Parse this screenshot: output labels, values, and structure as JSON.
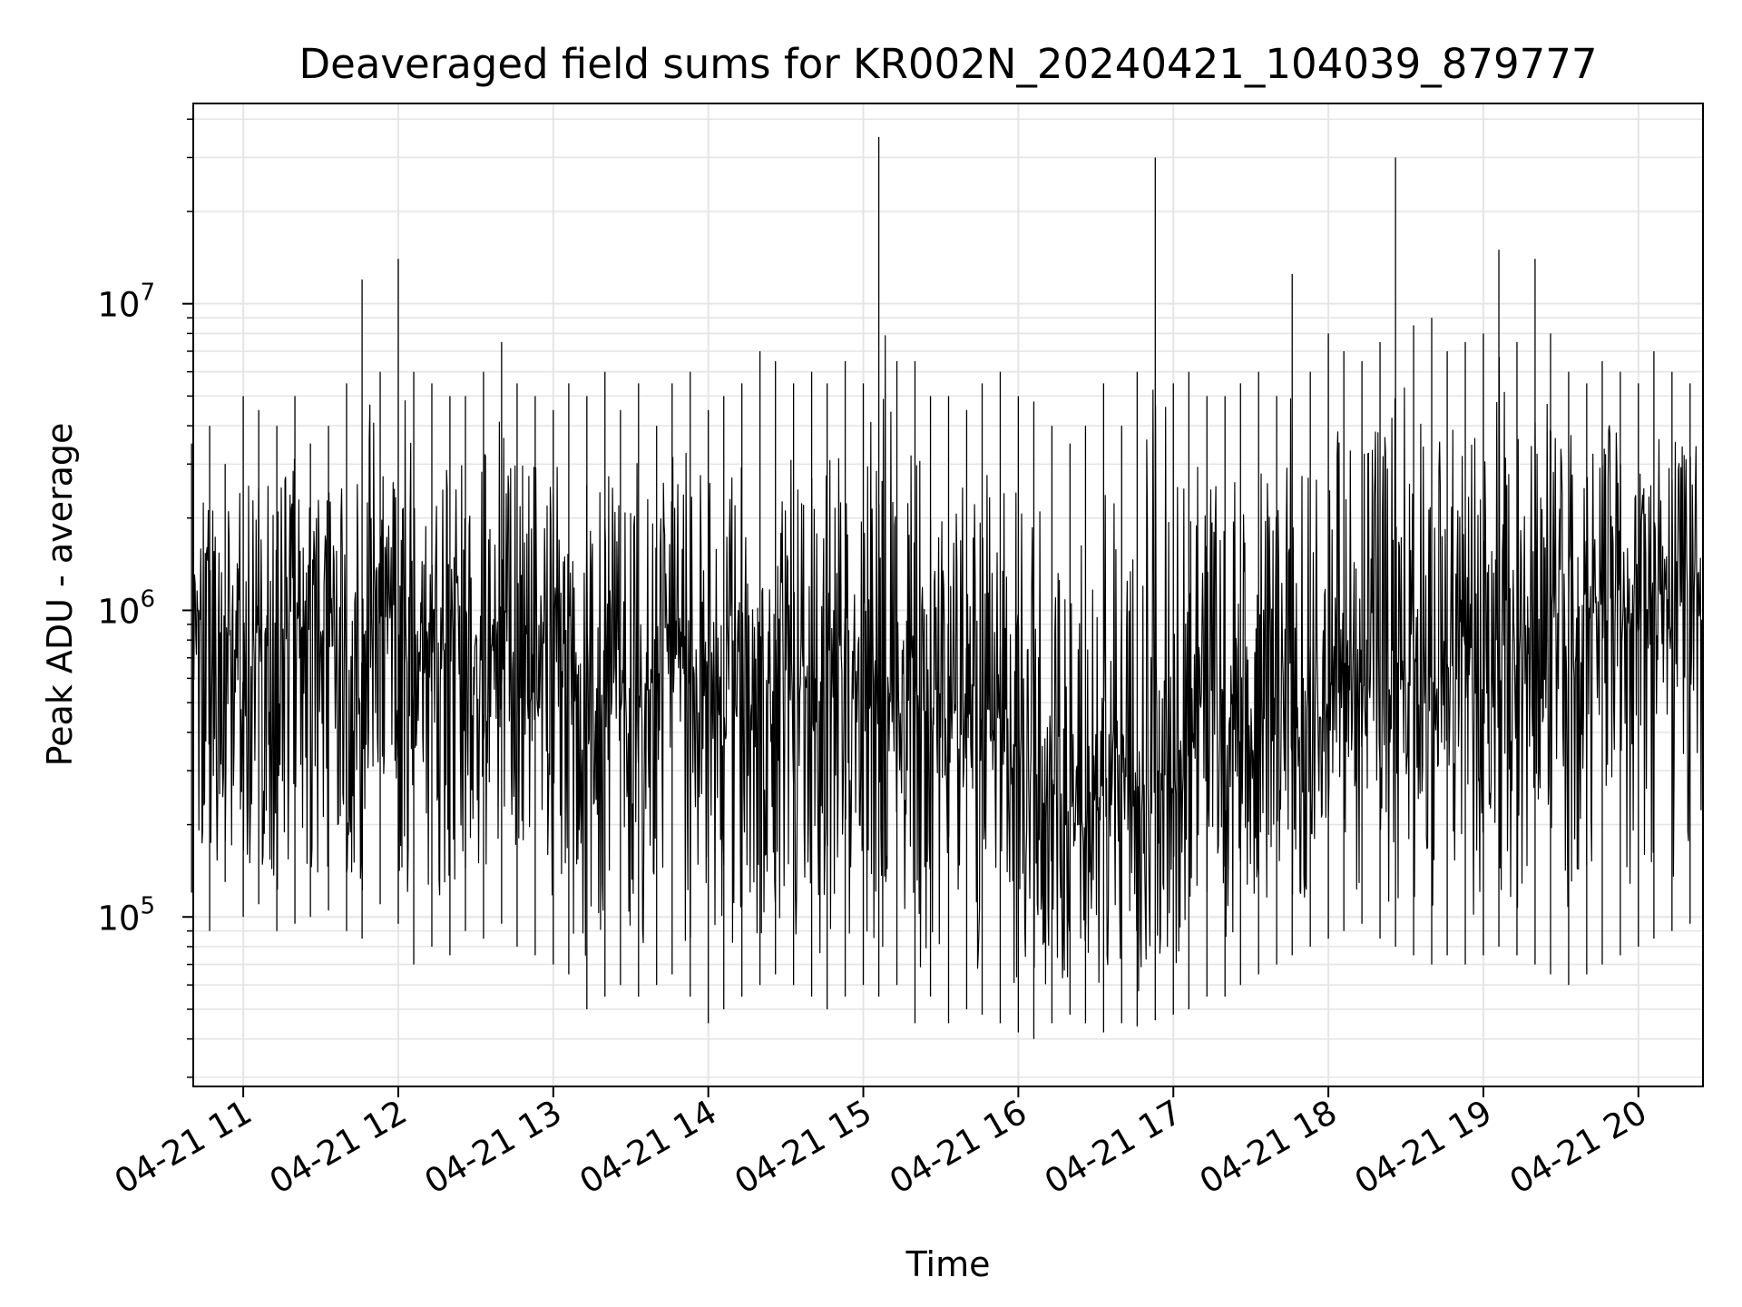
{
  "chart_data": {
    "type": "line",
    "title": "Deaveraged field sums for KR002N_20240421_104039_879777",
    "xlabel": "Time",
    "ylabel": "Peak ADU - average",
    "yscale": "log",
    "xlim": [
      "2024-04-21T10:40:39",
      "2024-04-21T20:25:00"
    ],
    "ylim": [
      28000,
      45000000
    ],
    "grid": true,
    "legend": "none",
    "line_color": "#000000",
    "x_tick_labels": [
      "04-21 11",
      "04-21 12",
      "04-21 13",
      "04-21 14",
      "04-21 15",
      "04-21 16",
      "04-21 17",
      "04-21 18",
      "04-21 19",
      "04-21 20"
    ],
    "x_tick_times": [
      "2024-04-21T11:00",
      "2024-04-21T12:00",
      "2024-04-21T13:00",
      "2024-04-21T14:00",
      "2024-04-21T15:00",
      "2024-04-21T16:00",
      "2024-04-21T17:00",
      "2024-04-21T18:00",
      "2024-04-21T19:00",
      "2024-04-21T20:00"
    ],
    "y_tick_labels": [
      {
        "base": "10",
        "exp": "5",
        "value": 100000
      },
      {
        "base": "10",
        "exp": "6",
        "value": 1000000
      },
      {
        "base": "10",
        "exp": "7",
        "value": 10000000
      }
    ],
    "series": [
      {
        "x": [
          "10:40",
          "10:47",
          "10:53",
          "11:00",
          "11:06",
          "11:13",
          "11:20",
          "11:26",
          "11:33",
          "11:40",
          "11:46",
          "11:53",
          "12:00",
          "12:06",
          "12:13",
          "12:20",
          "12:26",
          "12:33",
          "12:40",
          "12:46",
          "12:53",
          "13:00",
          "13:06",
          "13:13",
          "13:20",
          "13:26",
          "13:33",
          "13:40",
          "13:46",
          "13:53",
          "14:00",
          "14:06",
          "14:13",
          "14:20",
          "14:26",
          "14:33",
          "14:40",
          "14:46",
          "14:53",
          "15:00",
          "15:06",
          "15:13",
          "15:20",
          "15:26",
          "15:33",
          "15:40",
          "15:46",
          "15:53",
          "16:00",
          "16:06",
          "16:13",
          "16:20",
          "16:26",
          "16:33",
          "16:40",
          "16:46",
          "16:53",
          "17:00",
          "17:06",
          "17:13",
          "17:20",
          "17:26",
          "17:33",
          "17:40",
          "17:46",
          "17:53",
          "18:00",
          "18:06",
          "18:13",
          "18:20",
          "18:26",
          "18:33",
          "18:40",
          "18:46",
          "18:53",
          "19:00",
          "19:06",
          "19:13",
          "19:20",
          "19:26",
          "19:33",
          "19:40",
          "19:46",
          "19:53",
          "20:00",
          "20:06",
          "20:13",
          "20:20"
        ],
        "y": [
          1200000,
          700000,
          900000,
          500000,
          850000,
          600000,
          1000000,
          700000,
          800000,
          550000,
          650000,
          900000,
          1100000,
          850000,
          1000000,
          750000,
          1000000,
          700000,
          900000,
          600000,
          650000,
          800000,
          750000,
          600000,
          500000,
          650000,
          550000,
          600000,
          700000,
          650000,
          500000,
          550000,
          600000,
          650000,
          700000,
          600000,
          550000,
          700000,
          650000,
          500000,
          600000,
          450000,
          550000,
          400000,
          500000,
          450000,
          380000,
          420000,
          350000,
          300000,
          280000,
          250000,
          230000,
          250000,
          270000,
          250000,
          300000,
          320000,
          350000,
          600000,
          450000,
          400000,
          380000,
          420000,
          450000,
          500000,
          550000,
          600000,
          500000,
          600000,
          650000,
          550000,
          600000,
          650000,
          700000,
          600000,
          650000,
          700000,
          800000,
          900000,
          950000,
          1000000,
          1100000,
          1050000,
          900000,
          1100000,
          1200000,
          1300000
        ],
        "y_min": [
          120000,
          90000,
          130000,
          100000,
          110000,
          90000,
          95000,
          100000,
          105000,
          90000,
          85000,
          110000,
          95000,
          70000,
          80000,
          75000,
          90000,
          85000,
          95000,
          80000,
          75000,
          70000,
          65000,
          50000,
          55000,
          60000,
          55000,
          60000,
          65000,
          55000,
          45000,
          50000,
          55000,
          60000,
          65000,
          60000,
          55000,
          50000,
          55000,
          60000,
          55000,
          60000,
          45000,
          55000,
          45000,
          50000,
          48000,
          45000,
          42000,
          40000,
          45000,
          48000,
          45000,
          42000,
          45000,
          44000,
          46000,
          48000,
          50000,
          55000,
          55000,
          60000,
          65000,
          70000,
          75000,
          80000,
          85000,
          90000,
          95000,
          85000,
          80000,
          75000,
          70000,
          75000,
          70000,
          75000,
          80000,
          75000,
          70000,
          65000,
          60000,
          65000,
          70000,
          75000,
          80000,
          85000,
          90000,
          95000
        ],
        "y_max": [
          3500000,
          4000000,
          3000000,
          5000000,
          4500000,
          4000000,
          5000000,
          3500000,
          4000000,
          5500000,
          12000000,
          6000000,
          14000000,
          6000000,
          5500000,
          5000000,
          5000000,
          6000000,
          7500000,
          5500000,
          5000000,
          4500000,
          5500000,
          5000000,
          6000000,
          4500000,
          5500000,
          4000000,
          5500000,
          6000000,
          4500000,
          5000000,
          5500000,
          7000000,
          6500000,
          5500000,
          6000000,
          5500000,
          6500000,
          5500000,
          35000000,
          6500000,
          6500000,
          5000000,
          5000000,
          4500000,
          5500000,
          6000000,
          5000000,
          4800000,
          4000000,
          3500000,
          4000000,
          5500000,
          4000000,
          6000000,
          30000000,
          5500000,
          6000000,
          5000000,
          5000000,
          5500000,
          6000000,
          5000000,
          12500000,
          6000000,
          8000000,
          7000000,
          6500000,
          7500000,
          30000000,
          8500000,
          9000000,
          7000000,
          7500000,
          8000000,
          15000000,
          7500000,
          14000000,
          8000000,
          6000000,
          5500000,
          6500000,
          6000000,
          5500000,
          7000000,
          6000000,
          5500000
        ]
      }
    ]
  }
}
